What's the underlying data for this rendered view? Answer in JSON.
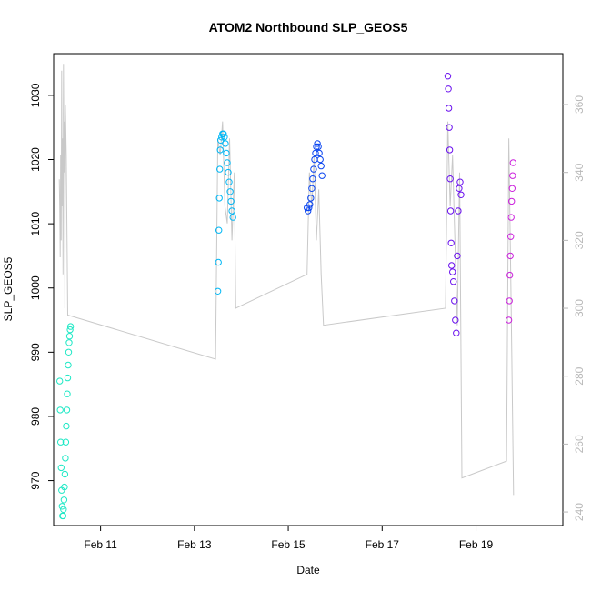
{
  "chart_data": {
    "type": "scatter",
    "title": "ATOM2 Northbound SLP_GEOS5",
    "xlabel": "Date",
    "ylabel": "SLP_GEOS5",
    "xlim": [
      10.0,
      20.85
    ],
    "ylim": [
      963.0,
      1036.5
    ],
    "y2lim": [
      236.0,
      375.0
    ],
    "x_ticks": [
      {
        "value": 11,
        "label": "Feb 11"
      },
      {
        "value": 13,
        "label": "Feb 13"
      },
      {
        "value": 15,
        "label": "Feb 15"
      },
      {
        "value": 17,
        "label": "Feb 17"
      },
      {
        "value": 19,
        "label": "Feb 19"
      }
    ],
    "y_ticks": [
      970,
      980,
      990,
      1000,
      1010,
      1020,
      1030
    ],
    "y2_ticks": [
      240,
      260,
      280,
      300,
      320,
      340,
      360
    ],
    "series_colors": [
      "#00ffcc",
      "#00bbff",
      "#0044ff",
      "#6a00ff",
      "#cc00ff",
      "#c9c9c9"
    ],
    "series": [
      {
        "color": "#1ee8c5",
        "x": [
          10.13,
          10.14,
          10.15,
          10.16,
          10.17,
          10.18,
          10.19,
          10.2,
          10.21,
          10.22,
          10.23,
          10.24,
          10.25,
          10.26,
          10.27,
          10.28,
          10.29,
          10.3,
          10.31,
          10.32,
          10.33,
          10.34,
          10.35,
          10.36
        ],
        "y": [
          985.5,
          981.0,
          976.0,
          972.0,
          968.5,
          966.0,
          964.5,
          964.5,
          965.5,
          967.0,
          969.0,
          971.0,
          973.5,
          976.0,
          978.5,
          981.0,
          983.5,
          986.0,
          988.0,
          990.0,
          991.5,
          992.5,
          993.5,
          994.0
        ]
      },
      {
        "color": "#00b7f5",
        "x": [
          13.5,
          13.51,
          13.52,
          13.53,
          13.54,
          13.55,
          13.56,
          13.58,
          13.6,
          13.62,
          13.64,
          13.66,
          13.68,
          13.7,
          13.72,
          13.74,
          13.76,
          13.78,
          13.8,
          13.82
        ],
        "y": [
          999.5,
          1004.0,
          1009.0,
          1014.0,
          1018.5,
          1021.5,
          1023.0,
          1023.5,
          1024.0,
          1024.0,
          1023.5,
          1022.5,
          1021.0,
          1019.5,
          1018.0,
          1016.5,
          1015.0,
          1013.5,
          1012.0,
          1011.0
        ]
      },
      {
        "color": "#0a45f0",
        "x": [
          15.4,
          15.42,
          15.44,
          15.46,
          15.48,
          15.5,
          15.52,
          15.54,
          15.56,
          15.58,
          15.6,
          15.62,
          15.64,
          15.66,
          15.68,
          15.7,
          15.72
        ],
        "y": [
          1012.5,
          1012.0,
          1012.5,
          1013.0,
          1014.0,
          1015.5,
          1017.0,
          1018.5,
          1020.0,
          1021.0,
          1022.0,
          1022.5,
          1022.0,
          1021.0,
          1020.0,
          1019.0,
          1017.5
        ]
      },
      {
        "color": "#6a10ee",
        "x": [
          18.4,
          18.41,
          18.42,
          18.43,
          18.44,
          18.45,
          18.46,
          18.47,
          18.48,
          18.5,
          18.52,
          18.54,
          18.56,
          18.58,
          18.6,
          18.62,
          18.64,
          18.66,
          18.68
        ],
        "y": [
          1033.0,
          1031.0,
          1028.0,
          1025.0,
          1021.5,
          1017.0,
          1012.0,
          1007.0,
          1003.5,
          1002.5,
          1001.0,
          998.0,
          995.0,
          993.0,
          1005.0,
          1012.0,
          1015.5,
          1016.5,
          1014.5
        ]
      },
      {
        "color": "#cc22dd",
        "x": [
          19.7,
          19.71,
          19.72,
          19.73,
          19.74,
          19.75,
          19.76,
          19.77,
          19.78,
          19.79
        ],
        "y": [
          995.0,
          998.0,
          1002.0,
          1005.0,
          1008.0,
          1011.0,
          1013.5,
          1015.5,
          1017.5,
          1019.5
        ]
      },
      {
        "color": "#c9c9c9",
        "type": "line",
        "x": [
          10.12,
          10.13,
          10.14,
          10.15,
          10.16,
          10.17,
          10.18,
          10.19,
          10.2,
          10.21,
          10.22,
          10.23,
          10.24,
          10.25,
          10.27,
          10.3,
          13.45,
          13.5,
          13.55,
          13.6,
          13.65,
          13.7,
          13.75,
          13.8,
          13.85,
          13.88,
          15.4,
          15.45,
          15.5,
          15.55,
          15.6,
          15.65,
          15.7,
          15.75,
          18.35,
          18.4,
          18.45,
          18.5,
          18.55,
          18.6,
          18.65,
          18.7,
          19.65,
          19.7,
          19.75,
          19.8
        ],
        "y": [
          338,
          330,
          315,
          345,
          320,
          370,
          330,
          350,
          310,
          372,
          340,
          355,
          300,
          360,
          345,
          298,
          285,
          350,
          345,
          355,
          330,
          325,
          350,
          320,
          340,
          300,
          310,
          340,
          330,
          345,
          320,
          335,
          310,
          295,
          300,
          355,
          330,
          345,
          320,
          295,
          340,
          250,
          255,
          350,
          300,
          245
        ]
      }
    ]
  }
}
